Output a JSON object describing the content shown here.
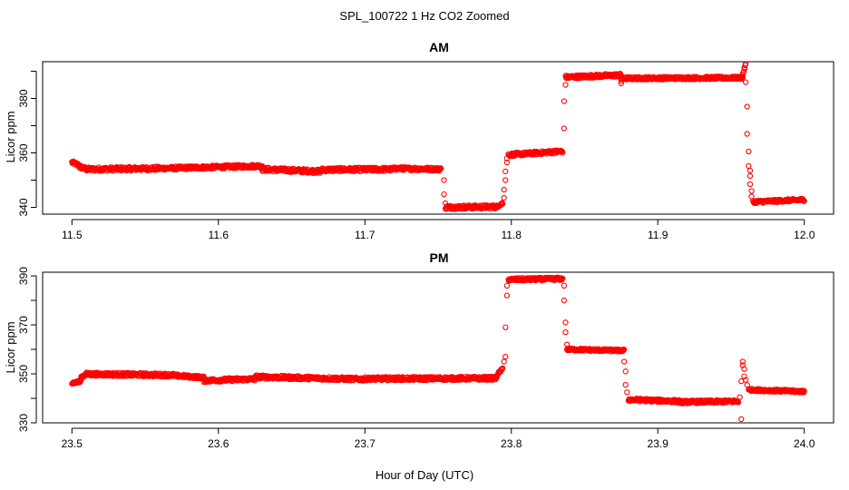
{
  "figure": {
    "title": "SPL_100722  1 Hz CO2 Zoomed",
    "xlabel": "Hour of Day (UTC)"
  },
  "colors": {
    "points": "#ff0000",
    "axis": "#000000",
    "background": "#ffffff"
  },
  "chart_data": [
    {
      "type": "scatter",
      "title": "AM",
      "ylabel": "Licor ppm",
      "xlim": [
        11.5,
        12.0
      ],
      "ylim": [
        337.5,
        393.5
      ],
      "x_ticks": [
        11.5,
        11.6,
        11.7,
        11.8,
        11.9,
        12.0
      ],
      "x_tick_labels": [
        "11.5",
        "11.6",
        "11.7",
        "11.8",
        "11.9",
        "12.0"
      ],
      "y_ticks": [
        340,
        350,
        360,
        370,
        380,
        390
      ],
      "y_tick_labels": [
        "340",
        "",
        "360",
        "",
        "380",
        ""
      ],
      "grid": false,
      "marker": "open-circle",
      "series": [
        {
          "segments": [
            {
              "x": [
                11.5,
                11.505
              ],
              "y": [
                356.5,
                355.5
              ],
              "noise": 0.6
            },
            {
              "x": [
                11.505,
                11.51
              ],
              "y": [
                355.0,
                354.0
              ],
              "noise": 0.7
            },
            {
              "x": [
                11.51,
                11.56
              ],
              "y": [
                354.0,
                354.3
              ],
              "noise": 0.7
            },
            {
              "x": [
                11.56,
                11.63
              ],
              "y": [
                354.3,
                355.2
              ],
              "noise": 0.6
            },
            {
              "x": [
                11.63,
                11.67
              ],
              "y": [
                354.0,
                353.2
              ],
              "noise": 0.7
            },
            {
              "x": [
                11.67,
                11.72
              ],
              "y": [
                353.8,
                354.0
              ],
              "noise": 0.7
            },
            {
              "x": [
                11.72,
                11.752
              ],
              "y": [
                354.3,
                354.0
              ],
              "noise": 0.6
            },
            {
              "x": [
                11.755,
                11.79
              ],
              "y": [
                340.0,
                340.2
              ],
              "noise": 0.7
            },
            {
              "x": [
                11.79,
                11.794
              ],
              "y": [
                340.3,
                341.5
              ],
              "noise": 0.5
            },
            {
              "x": [
                11.798,
                11.835
              ],
              "y": [
                359.3,
                360.6
              ],
              "noise": 0.6
            },
            {
              "x": [
                11.837,
                11.875
              ],
              "y": [
                387.8,
                388.6
              ],
              "noise": 0.6
            },
            {
              "x": [
                11.875,
                11.958
              ],
              "y": [
                387.4,
                387.6
              ],
              "noise": 0.5
            },
            {
              "x": [
                11.958,
                11.96
              ],
              "y": [
                389.0,
                392.5
              ],
              "noise": 0.5
            },
            {
              "x": [
                11.965,
                12.0
              ],
              "y": [
                342.0,
                342.8
              ],
              "noise": 0.5
            }
          ],
          "points": [
            {
              "x": 11.754,
              "y": 350.0
            },
            {
              "x": 11.754,
              "y": 344.8
            },
            {
              "x": 11.755,
              "y": 341.5
            },
            {
              "x": 11.795,
              "y": 343.5
            },
            {
              "x": 11.795,
              "y": 346.5
            },
            {
              "x": 11.796,
              "y": 350.0
            },
            {
              "x": 11.796,
              "y": 353.2
            },
            {
              "x": 11.797,
              "y": 356.5
            },
            {
              "x": 11.797,
              "y": 358.0
            },
            {
              "x": 11.836,
              "y": 369.0
            },
            {
              "x": 11.836,
              "y": 379.0
            },
            {
              "x": 11.837,
              "y": 385.0
            },
            {
              "x": 11.875,
              "y": 385.5
            },
            {
              "x": 11.875,
              "y": 386.5
            },
            {
              "x": 11.96,
              "y": 386.0
            },
            {
              "x": 11.961,
              "y": 377.0
            },
            {
              "x": 11.961,
              "y": 367.0
            },
            {
              "x": 11.962,
              "y": 360.5
            },
            {
              "x": 11.962,
              "y": 355.2
            },
            {
              "x": 11.963,
              "y": 353.5
            },
            {
              "x": 11.963,
              "y": 351.5
            },
            {
              "x": 11.963,
              "y": 348.5
            },
            {
              "x": 11.964,
              "y": 346.0
            },
            {
              "x": 11.964,
              "y": 344.0
            }
          ]
        }
      ]
    },
    {
      "type": "scatter",
      "title": "PM",
      "ylabel": "Licor ppm",
      "xlim": [
        23.5,
        24.0
      ],
      "ylim": [
        330.0,
        391.5
      ],
      "x_ticks": [
        23.5,
        23.6,
        23.7,
        23.8,
        23.9,
        24.0
      ],
      "x_tick_labels": [
        "23.5",
        "23.6",
        "23.7",
        "23.8",
        "23.9",
        "24.0"
      ],
      "y_ticks": [
        330,
        340,
        350,
        360,
        370,
        380,
        390
      ],
      "y_tick_labels": [
        "330",
        "",
        "350",
        "",
        "370",
        "",
        "390"
      ],
      "grid": false,
      "marker": "open-circle",
      "series": [
        {
          "segments": [
            {
              "x": [
                23.5,
                23.506
              ],
              "y": [
                346.3,
                346.8
              ],
              "noise": 0.5
            },
            {
              "x": [
                23.506,
                23.51
              ],
              "y": [
                348.5,
                350.0
              ],
              "noise": 0.6
            },
            {
              "x": [
                23.51,
                23.57
              ],
              "y": [
                349.9,
                349.5
              ],
              "noise": 0.7
            },
            {
              "x": [
                23.57,
                23.59
              ],
              "y": [
                349.3,
                348.5
              ],
              "noise": 0.6
            },
            {
              "x": [
                23.59,
                23.625
              ],
              "y": [
                347.3,
                347.9
              ],
              "noise": 0.7
            },
            {
              "x": [
                23.625,
                23.7
              ],
              "y": [
                348.8,
                347.8
              ],
              "noise": 0.7
            },
            {
              "x": [
                23.7,
                23.79
              ],
              "y": [
                348.0,
                348.2
              ],
              "noise": 0.7
            },
            {
              "x": [
                23.79,
                23.794
              ],
              "y": [
                349.5,
                352.0
              ],
              "noise": 0.5
            },
            {
              "x": [
                23.798,
                23.835
              ],
              "y": [
                388.5,
                388.8
              ],
              "noise": 0.6
            },
            {
              "x": [
                23.838,
                23.877
              ],
              "y": [
                360.0,
                359.5
              ],
              "noise": 0.5
            },
            {
              "x": [
                23.88,
                23.915
              ],
              "y": [
                339.5,
                338.8
              ],
              "noise": 0.6
            },
            {
              "x": [
                23.915,
                23.955
              ],
              "y": [
                338.5,
                338.8
              ],
              "noise": 0.6
            },
            {
              "x": [
                23.962,
                24.0
              ],
              "y": [
                343.5,
                342.8
              ],
              "noise": 0.5
            }
          ],
          "points": [
            {
              "x": 23.795,
              "y": 355.0
            },
            {
              "x": 23.796,
              "y": 357.0
            },
            {
              "x": 23.796,
              "y": 369.0
            },
            {
              "x": 23.797,
              "y": 382.0
            },
            {
              "x": 23.797,
              "y": 386.0
            },
            {
              "x": 23.836,
              "y": 386.0
            },
            {
              "x": 23.836,
              "y": 380.0
            },
            {
              "x": 23.837,
              "y": 371.0
            },
            {
              "x": 23.837,
              "y": 367.0
            },
            {
              "x": 23.838,
              "y": 362.0
            },
            {
              "x": 23.877,
              "y": 355.0
            },
            {
              "x": 23.878,
              "y": 351.0
            },
            {
              "x": 23.878,
              "y": 345.5
            },
            {
              "x": 23.879,
              "y": 342.5
            },
            {
              "x": 23.956,
              "y": 340.5
            },
            {
              "x": 23.957,
              "y": 331.5
            },
            {
              "x": 23.957,
              "y": 347.0
            },
            {
              "x": 23.958,
              "y": 355.0
            },
            {
              "x": 23.958,
              "y": 353.5
            },
            {
              "x": 23.959,
              "y": 352.0
            },
            {
              "x": 23.959,
              "y": 349.0
            },
            {
              "x": 23.96,
              "y": 347.5
            },
            {
              "x": 23.961,
              "y": 345.5
            }
          ]
        }
      ]
    }
  ]
}
